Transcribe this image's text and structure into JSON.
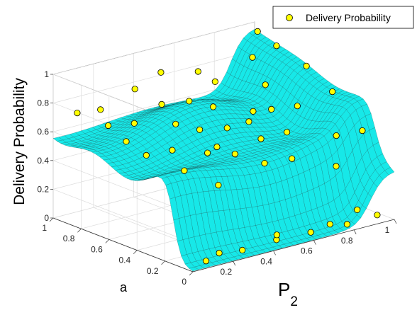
{
  "chart_data": {
    "type": "surface3d-scatter",
    "zlabel": "Delivery Probability",
    "xlabel": "P",
    "xlabel_sub": "2",
    "ylabel": "a",
    "xticks": [
      "0.2",
      "0.4",
      "0.6",
      "0.8",
      "1"
    ],
    "yticks": [
      "0",
      "0.2",
      "0.4",
      "0.6",
      "0.8",
      "1"
    ],
    "zticks": [
      "0",
      "0.2",
      "0.4",
      "0.6",
      "0.8",
      "1"
    ],
    "xlim": [
      0,
      1
    ],
    "ylim": [
      0,
      1
    ],
    "zlim": [
      0,
      1
    ],
    "grid": true,
    "legend": {
      "entries": [
        "Delivery Probability"
      ],
      "position": "top-right"
    },
    "colors": {
      "surface": "#17e8e8",
      "mesh": "#0a3a3a",
      "marker_fill": "#ffff00",
      "marker_edge": "#000000"
    },
    "scatter_points": [
      {
        "x": 0.1,
        "y": 0.05,
        "z": 0.02
      },
      {
        "x": 0.28,
        "y": 0.05,
        "z": 0.03
      },
      {
        "x": 0.45,
        "y": 0.05,
        "z": 0.04
      },
      {
        "x": 0.62,
        "y": 0.05,
        "z": 0.03
      },
      {
        "x": 0.8,
        "y": 0.05,
        "z": 0.02
      },
      {
        "x": 0.95,
        "y": 0.05,
        "z": 0.03
      },
      {
        "x": 0.2,
        "y": 0.1,
        "z": 0.02
      },
      {
        "x": 0.5,
        "y": 0.12,
        "z": 0.03
      },
      {
        "x": 0.75,
        "y": 0.1,
        "z": 0.02
      },
      {
        "x": 0.92,
        "y": 0.15,
        "z": 0.04
      },
      {
        "x": 0.98,
        "y": 0.2,
        "z": 0.55
      },
      {
        "x": 0.97,
        "y": 0.4,
        "z": 0.75
      },
      {
        "x": 0.98,
        "y": 0.6,
        "z": 0.85
      },
      {
        "x": 0.97,
        "y": 0.8,
        "z": 0.92
      },
      {
        "x": 0.98,
        "y": 0.95,
        "z": 0.96
      },
      {
        "x": 0.92,
        "y": 0.3,
        "z": 0.5
      },
      {
        "x": 0.9,
        "y": 0.55,
        "z": 0.62
      },
      {
        "x": 0.88,
        "y": 0.75,
        "z": 0.7
      },
      {
        "x": 0.92,
        "y": 0.9,
        "z": 0.82
      },
      {
        "x": 0.2,
        "y": 0.35,
        "z": 0.5
      },
      {
        "x": 0.35,
        "y": 0.4,
        "z": 0.55
      },
      {
        "x": 0.5,
        "y": 0.42,
        "z": 0.48
      },
      {
        "x": 0.65,
        "y": 0.45,
        "z": 0.52
      },
      {
        "x": 0.8,
        "y": 0.48,
        "z": 0.5
      },
      {
        "x": 0.15,
        "y": 0.55,
        "z": 0.55
      },
      {
        "x": 0.3,
        "y": 0.58,
        "z": 0.52
      },
      {
        "x": 0.45,
        "y": 0.6,
        "z": 0.6
      },
      {
        "x": 0.6,
        "y": 0.62,
        "z": 0.55
      },
      {
        "x": 0.75,
        "y": 0.65,
        "z": 0.6
      },
      {
        "x": 0.1,
        "y": 0.75,
        "z": 0.7
      },
      {
        "x": 0.25,
        "y": 0.78,
        "z": 0.65
      },
      {
        "x": 0.4,
        "y": 0.8,
        "z": 0.72
      },
      {
        "x": 0.55,
        "y": 0.82,
        "z": 0.68
      },
      {
        "x": 0.7,
        "y": 0.85,
        "z": 0.75
      },
      {
        "x": 0.05,
        "y": 0.9,
        "z": 0.75
      },
      {
        "x": 0.2,
        "y": 0.95,
        "z": 0.7
      },
      {
        "x": 0.35,
        "y": 0.92,
        "z": 0.8
      },
      {
        "x": 0.5,
        "y": 0.95,
        "z": 0.85
      },
      {
        "x": 0.65,
        "y": 0.9,
        "z": 0.82
      },
      {
        "x": 0.3,
        "y": 0.25,
        "z": 0.4
      },
      {
        "x": 0.55,
        "y": 0.28,
        "z": 0.45
      },
      {
        "x": 0.7,
        "y": 0.3,
        "z": 0.42
      },
      {
        "x": 0.4,
        "y": 0.7,
        "z": 0.62
      },
      {
        "x": 0.6,
        "y": 0.72,
        "z": 0.66
      },
      {
        "x": 0.85,
        "y": 0.2,
        "z": 0.35
      },
      {
        "x": 0.12,
        "y": 0.65,
        "z": 0.62
      },
      {
        "x": 0.48,
        "y": 0.52,
        "z": 0.5
      },
      {
        "x": 0.68,
        "y": 0.58,
        "z": 0.58
      },
      {
        "x": 0.82,
        "y": 0.62,
        "z": 0.6
      }
    ]
  }
}
